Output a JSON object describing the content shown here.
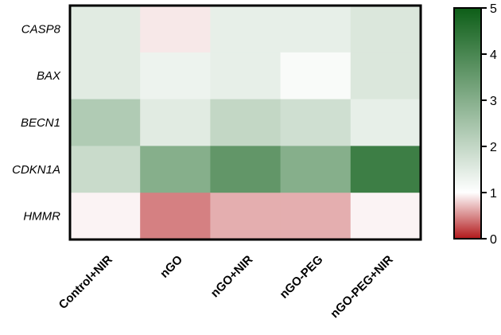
{
  "chart_data": {
    "type": "heatmap",
    "title": "",
    "xlabel": "",
    "ylabel": "",
    "rows": [
      "CASP8",
      "BAX",
      "BECN1",
      "CDKN1A",
      "HMMR"
    ],
    "columns": [
      "Control+NIR",
      "nGO",
      "nGO+NIR",
      "nGO-PEG",
      "nGO-PEG+NIR"
    ],
    "values": [
      [
        1.5,
        0.9,
        1.4,
        1.4,
        1.6
      ],
      [
        1.5,
        1.3,
        1.4,
        1.1,
        1.6
      ],
      [
        2.3,
        1.5,
        2.0,
        1.8,
        1.4
      ],
      [
        1.9,
        3.0,
        3.6,
        3.0,
        4.2
      ],
      [
        0.95,
        0.45,
        0.65,
        0.65,
        0.95
      ]
    ],
    "colorbar": {
      "min": 0,
      "max": 5,
      "ticks": [
        0,
        1,
        2,
        3,
        4,
        5
      ],
      "stops": [
        {
          "value": 0,
          "color": "#b2181b"
        },
        {
          "value": 1,
          "color": "#ffffff"
        },
        {
          "value": 5,
          "color": "#0d5e17"
        }
      ]
    }
  }
}
